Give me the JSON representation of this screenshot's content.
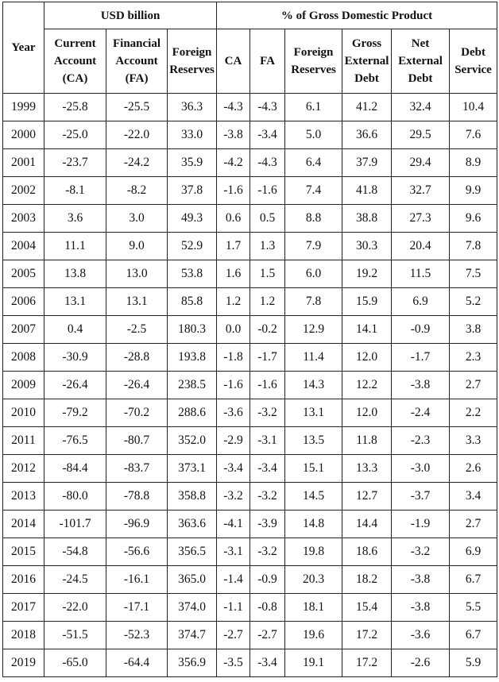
{
  "table": {
    "header": {
      "year": "Year",
      "groups": [
        "USD billion",
        "% of Gross Domestic Product"
      ],
      "columns": [
        [
          "Current",
          "Account",
          "(CA)"
        ],
        [
          "Financial",
          "Account",
          "(FA)"
        ],
        [
          "Foreign",
          "Reserves"
        ],
        [
          "CA"
        ],
        [
          "FA"
        ],
        [
          "Foreign",
          "Reserves"
        ],
        [
          "Gross",
          "External",
          "Debt"
        ],
        [
          "Net",
          "External",
          "Debt"
        ],
        [
          "Debt",
          "Service"
        ]
      ]
    },
    "rows": [
      [
        "1999",
        "-25.8",
        "-25.5",
        "36.3",
        "-4.3",
        "-4.3",
        "6.1",
        "41.2",
        "32.4",
        "10.4"
      ],
      [
        "2000",
        "-25.0",
        "-22.0",
        "33.0",
        "-3.8",
        "-3.4",
        "5.0",
        "36.6",
        "29.5",
        "7.6"
      ],
      [
        "2001",
        "-23.7",
        "-24.2",
        "35.9",
        "-4.2",
        "-4.3",
        "6.4",
        "37.9",
        "29.4",
        "8.9"
      ],
      [
        "2002",
        "-8.1",
        "-8.2",
        "37.8",
        "-1.6",
        "-1.6",
        "7.4",
        "41.8",
        "32.7",
        "9.9"
      ],
      [
        "2003",
        "3.6",
        "3.0",
        "49.3",
        "0.6",
        "0.5",
        "8.8",
        "38.8",
        "27.3",
        "9.6"
      ],
      [
        "2004",
        "11.1",
        "9.0",
        "52.9",
        "1.7",
        "1.3",
        "7.9",
        "30.3",
        "20.4",
        "7.8"
      ],
      [
        "2005",
        "13.8",
        "13.0",
        "53.8",
        "1.6",
        "1.5",
        "6.0",
        "19.2",
        "11.5",
        "7.5"
      ],
      [
        "2006",
        "13.1",
        "13.1",
        "85.8",
        "1.2",
        "1.2",
        "7.8",
        "15.9",
        "6.9",
        "5.2"
      ],
      [
        "2007",
        "0.4",
        "-2.5",
        "180.3",
        "0.0",
        "-0.2",
        "12.9",
        "14.1",
        "-0.9",
        "3.8"
      ],
      [
        "2008",
        "-30.9",
        "-28.8",
        "193.8",
        "-1.8",
        "-1.7",
        "11.4",
        "12.0",
        "-1.7",
        "2.3"
      ],
      [
        "2009",
        "-26.4",
        "-26.4",
        "238.5",
        "-1.6",
        "-1.6",
        "14.3",
        "12.2",
        "-3.8",
        "2.7"
      ],
      [
        "2010",
        "-79.2",
        "-70.2",
        "288.6",
        "-3.6",
        "-3.2",
        "13.1",
        "12.0",
        "-2.4",
        "2.2"
      ],
      [
        "2011",
        "-76.5",
        "-80.7",
        "352.0",
        "-2.9",
        "-3.1",
        "13.5",
        "11.8",
        "-2.3",
        "3.3"
      ],
      [
        "2012",
        "-84.4",
        "-83.7",
        "373.1",
        "-3.4",
        "-3.4",
        "15.1",
        "13.3",
        "-3.0",
        "2.6"
      ],
      [
        "2013",
        "-80.0",
        "-78.8",
        "358.8",
        "-3.2",
        "-3.2",
        "14.5",
        "12.7",
        "-3.7",
        "3.4"
      ],
      [
        "2014",
        "-101.7",
        "-96.9",
        "363.6",
        "-4.1",
        "-3.9",
        "14.8",
        "14.4",
        "-1.9",
        "2.7"
      ],
      [
        "2015",
        "-54.8",
        "-56.6",
        "356.5",
        "-3.1",
        "-3.2",
        "19.8",
        "18.6",
        "-3.2",
        "6.9"
      ],
      [
        "2016",
        "-24.5",
        "-16.1",
        "365.0",
        "-1.4",
        "-0.9",
        "20.3",
        "18.2",
        "-3.8",
        "6.7"
      ],
      [
        "2017",
        "-22.0",
        "-17.1",
        "374.0",
        "-1.1",
        "-0.8",
        "18.1",
        "15.4",
        "-3.8",
        "5.5"
      ],
      [
        "2018",
        "-51.5",
        "-52.3",
        "374.7",
        "-2.7",
        "-2.7",
        "19.6",
        "17.2",
        "-3.6",
        "6.7"
      ],
      [
        "2019",
        "-65.0",
        "-64.4",
        "356.9",
        "-3.5",
        "-3.4",
        "19.1",
        "17.2",
        "-2.6",
        "5.9"
      ]
    ]
  }
}
